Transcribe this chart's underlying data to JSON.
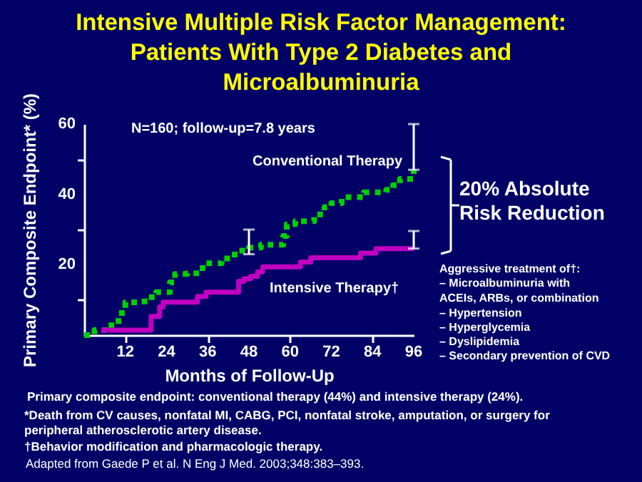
{
  "chart_data": {
    "type": "step",
    "title": "Intensive Multiple Risk Factor Management:\nPatients With Type 2 Diabetes and\nMicroalbuminuria",
    "xlabel": "Months of Follow-Up",
    "ylabel": "Primary Composite Endpoint* (%)",
    "xlim": [
      0,
      96
    ],
    "ylim": [
      0,
      60
    ],
    "xticks": [
      12,
      24,
      36,
      48,
      60,
      72,
      84,
      96
    ],
    "yticks": [
      {
        "value": 10,
        "label": null
      },
      20,
      {
        "value": 30,
        "label": null
      },
      40,
      {
        "value": 50,
        "label": null
      },
      60
    ],
    "grid": false,
    "legend": false,
    "marker": "none",
    "series": [
      {
        "name": "Conventional Therapy",
        "color": "#00d000",
        "line_style": "dotted",
        "x": [
          0,
          3,
          6,
          10,
          12,
          16,
          18.5,
          21,
          25,
          26.5,
          30,
          34.5,
          40,
          43,
          45,
          48,
          51.5,
          58,
          59,
          61.5,
          67,
          70,
          72,
          75,
          81.5,
          88,
          90,
          92,
          96
        ],
        "values": [
          0,
          1.4,
          2.8,
          6.3,
          9.3,
          9.6,
          10.8,
          12.2,
          15,
          17.4,
          17.6,
          20.4,
          21.8,
          22.9,
          24,
          24.9,
          25.7,
          28.2,
          31.5,
          32.4,
          34.3,
          36.4,
          37.5,
          39.2,
          40.6,
          41.3,
          42.6,
          44.4,
          47
        ],
        "errors": [
          null,
          null,
          null,
          null,
          null,
          null,
          null,
          null,
          null,
          null,
          null,
          null,
          null,
          null,
          null,
          [
            23,
            30
          ],
          null,
          null,
          null,
          null,
          null,
          null,
          null,
          null,
          null,
          null,
          null,
          null,
          [
            47,
            60
          ]
        ]
      },
      {
        "name": "Intensive Therapy†",
        "color": "#c000c0",
        "line_style": "solid",
        "x": [
          5,
          19.5,
          22,
          23,
          33,
          35.5,
          45,
          46.5,
          48.5,
          50.5,
          52,
          63,
          66,
          80.5,
          85,
          96
        ],
        "values": [
          1.4,
          5.3,
          8,
          9.4,
          11,
          12.2,
          15.3,
          16,
          16.7,
          18,
          19.4,
          20.8,
          22,
          23.3,
          24.6,
          24.6
        ],
        "errors": [
          null,
          null,
          null,
          null,
          null,
          null,
          null,
          null,
          null,
          null,
          null,
          null,
          null,
          null,
          null,
          [
            24.6,
            29.6
          ]
        ]
      }
    ],
    "annotations": [
      "N=160; follow-up=7.8 years",
      "20% Absolute\nRisk Reduction",
      "Aggressive treatment of†:",
      "– Microalbuminuria with\n   ACEIs, ARBs, or combination",
      "– Hypertension",
      "– Hyperglycemia",
      "– Dyslipidemia",
      "– Secondary prevention of CVD",
      "Primary composite endpoint: conventional therapy (44%) and intensive therapy (24%).",
      "*Death from CV causes, nonfatal MI, CABG, PCI, nonfatal stroke, amputation, or surgery for\nperipheral atherosclerotic artery disease.",
      "†Behavior modification and pharmacologic therapy.",
      "Adapted from Gaede P et al. N Eng J Med. 2003;348:383–393."
    ]
  }
}
